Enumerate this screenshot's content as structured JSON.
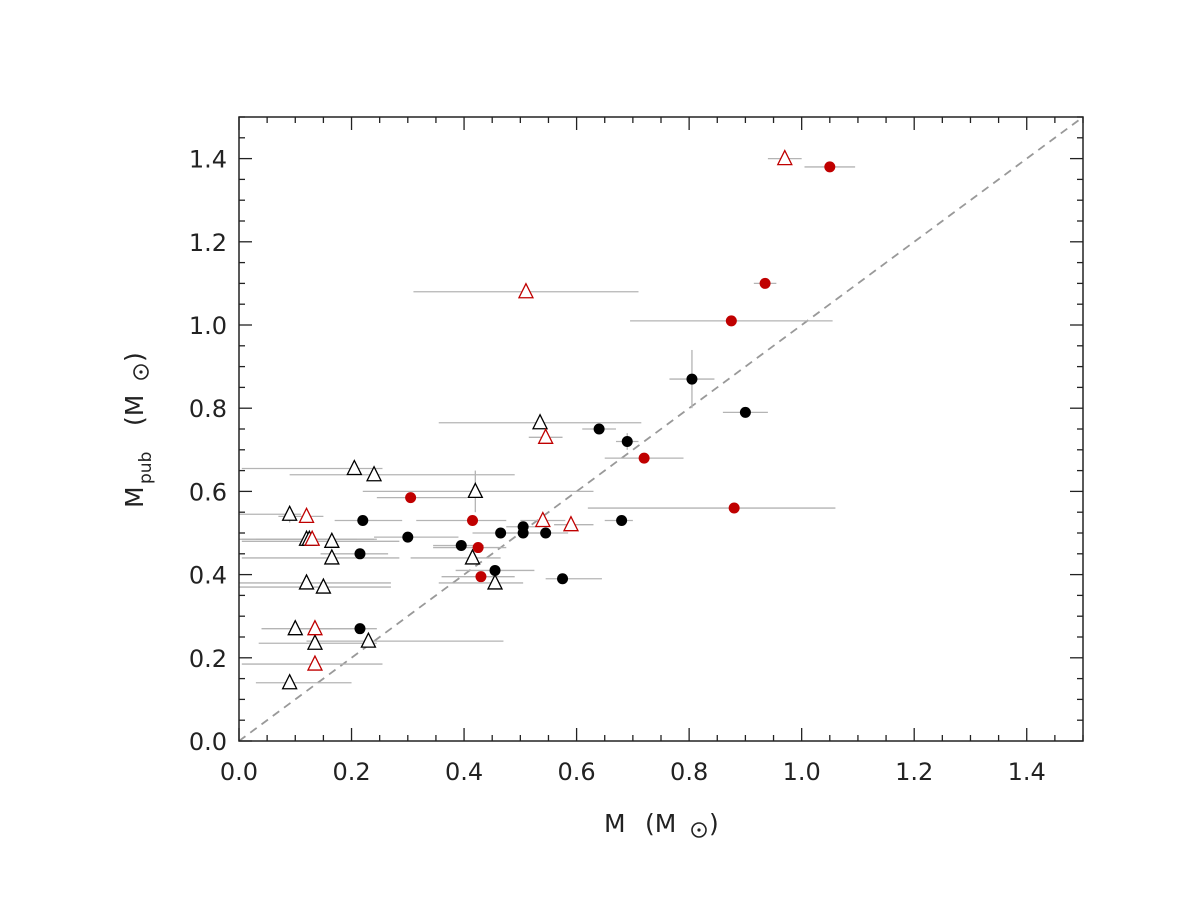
{
  "chart_data": {
    "type": "scatter",
    "title": "",
    "xlabel": {
      "main": "M",
      "unit_open": "(M",
      "unit_close": ")",
      "unit_symbol": "sun-symbol"
    },
    "ylabel": {
      "main": "M",
      "sub": "pub",
      "unit_open": "(M",
      "unit_close": ")",
      "unit_symbol": "sun-symbol"
    },
    "xlim": [
      0.0,
      1.5
    ],
    "ylim": [
      0.0,
      1.5
    ],
    "xticks": [
      "0.0",
      "0.2",
      "0.4",
      "0.6",
      "0.8",
      "1.0",
      "1.2",
      "1.4"
    ],
    "yticks": [
      "0.0",
      "0.2",
      "0.4",
      "0.6",
      "0.8",
      "1.0",
      "1.2",
      "1.4"
    ],
    "reference_line": {
      "type": "one-to-one",
      "style": "dashed",
      "color": "#999999",
      "x": [
        0.0,
        1.5
      ],
      "y": [
        0.0,
        1.5
      ]
    },
    "colors": {
      "black": "#000000",
      "red": "#c00000",
      "error_bar": "#b4b4b4"
    },
    "series": [
      {
        "name": "black-circles",
        "marker": "filled-circle",
        "color": "#000000",
        "points": [
          {
            "x": 0.215,
            "y": 0.27,
            "xerr": [
              0.09,
              0.03
            ],
            "yerr": 0
          },
          {
            "x": 0.215,
            "y": 0.45,
            "xerr": [
              0.07,
              0.05
            ],
            "yerr": 0
          },
          {
            "x": 0.22,
            "y": 0.53,
            "xerr": [
              0.05,
              0.07
            ],
            "yerr": 0
          },
          {
            "x": 0.3,
            "y": 0.49,
            "xerr": [
              0.06,
              0.09
            ],
            "yerr": 0
          },
          {
            "x": 0.395,
            "y": 0.47,
            "xerr": [
              0.05,
              0.04
            ],
            "yerr": 0
          },
          {
            "x": 0.455,
            "y": 0.41,
            "xerr": [
              0.07,
              0.07
            ],
            "yerr": 0
          },
          {
            "x": 0.465,
            "y": 0.5,
            "xerr": [
              0.05,
              0.04
            ],
            "yerr": 0
          },
          {
            "x": 0.505,
            "y": 0.5,
            "xerr": [
              0.03,
              0.03
            ],
            "yerr": 0
          },
          {
            "x": 0.505,
            "y": 0.515,
            "xerr": [
              0.03,
              0.03
            ],
            "yerr": 0
          },
          {
            "x": 0.545,
            "y": 0.5,
            "xerr": [
              0.03,
              0.04
            ],
            "yerr": 0
          },
          {
            "x": 0.575,
            "y": 0.39,
            "xerr": [
              0.03,
              0.07
            ],
            "yerr": 0
          },
          {
            "x": 0.64,
            "y": 0.75,
            "xerr": [
              0.03,
              0.03
            ],
            "yerr": 0
          },
          {
            "x": 0.68,
            "y": 0.53,
            "xerr": [
              0.03,
              0.02
            ],
            "yerr": 0
          },
          {
            "x": 0.69,
            "y": 0.72,
            "xerr": [
              0.02,
              0.02
            ],
            "yerr": 0.02
          },
          {
            "x": 0.805,
            "y": 0.87,
            "xerr": [
              0.04,
              0.04
            ],
            "yerr": 0.07
          },
          {
            "x": 0.9,
            "y": 0.79,
            "xerr": [
              0.04,
              0.04
            ],
            "yerr": 0
          }
        ]
      },
      {
        "name": "red-circles",
        "marker": "filled-circle",
        "color": "#c00000",
        "points": [
          {
            "x": 0.305,
            "y": 0.585,
            "xerr": [
              0.06,
              0.1
            ],
            "yerr": 0
          },
          {
            "x": 0.415,
            "y": 0.53,
            "xerr": [
              0.1,
              0.06
            ],
            "yerr": 0
          },
          {
            "x": 0.425,
            "y": 0.465,
            "xerr": [
              0.08,
              0.05
            ],
            "yerr": 0
          },
          {
            "x": 0.43,
            "y": 0.395,
            "xerr": [
              0.07,
              0.06
            ],
            "yerr": 0
          },
          {
            "x": 0.72,
            "y": 0.68,
            "xerr": [
              0.07,
              0.07
            ],
            "yerr": 0
          },
          {
            "x": 0.875,
            "y": 1.01,
            "xerr": [
              0.18,
              0.18
            ],
            "yerr": 0
          },
          {
            "x": 0.88,
            "y": 0.56,
            "xerr": [
              0.26,
              0.18
            ],
            "yerr": 0
          },
          {
            "x": 0.935,
            "y": 1.1,
            "xerr": [
              0.02,
              0.02
            ],
            "yerr": 0
          },
          {
            "x": 1.05,
            "y": 1.38,
            "xerr": [
              0.045,
              0.045
            ],
            "yerr": 0
          }
        ]
      },
      {
        "name": "black-triangles",
        "marker": "open-triangle",
        "color": "#000000",
        "points": [
          {
            "x": 0.09,
            "y": 0.545,
            "xerr": [
              0.09,
              0.02
            ],
            "yerr": 0.02
          },
          {
            "x": 0.09,
            "y": 0.14,
            "xerr": [
              0.06,
              0.11
            ],
            "yerr": 0
          },
          {
            "x": 0.1,
            "y": 0.27,
            "xerr": [
              0.06,
              0.1
            ],
            "yerr": 0
          },
          {
            "x": 0.12,
            "y": 0.485,
            "xerr": [
              0.12,
              0.12
            ],
            "yerr": 0
          },
          {
            "x": 0.125,
            "y": 0.485,
            "xerr": [
              0.12,
              0.12
            ],
            "yerr": 0
          },
          {
            "x": 0.12,
            "y": 0.38,
            "xerr": [
              0.12,
              0.15
            ],
            "yerr": 0
          },
          {
            "x": 0.135,
            "y": 0.235,
            "xerr": [
              0.1,
              0.11
            ],
            "yerr": 0
          },
          {
            "x": 0.15,
            "y": 0.37,
            "xerr": [
              0.15,
              0.12
            ],
            "yerr": 0
          },
          {
            "x": 0.165,
            "y": 0.48,
            "xerr": [
              0.16,
              0.12
            ],
            "yerr": 0
          },
          {
            "x": 0.165,
            "y": 0.44,
            "xerr": [
              0.16,
              0.12
            ],
            "yerr": 0
          },
          {
            "x": 0.205,
            "y": 0.655,
            "xerr": [
              0.2,
              0.05
            ],
            "yerr": 0
          },
          {
            "x": 0.23,
            "y": 0.24,
            "xerr": [
              0.11,
              0.24
            ],
            "yerr": 0
          },
          {
            "x": 0.24,
            "y": 0.64,
            "xerr": [
              0.15,
              0.25
            ],
            "yerr": 0
          },
          {
            "x": 0.415,
            "y": 0.44,
            "xerr": [
              0.11,
              0.05
            ],
            "yerr": 0
          },
          {
            "x": 0.42,
            "y": 0.6,
            "xerr": [
              0.2,
              0.21
            ],
            "yerr": 0.05
          },
          {
            "x": 0.455,
            "y": 0.38,
            "xerr": [
              0.1,
              0.05
            ],
            "yerr": 0
          },
          {
            "x": 0.535,
            "y": 0.765,
            "xerr": [
              0.18,
              0.18
            ],
            "yerr": 0
          }
        ]
      },
      {
        "name": "red-triangles",
        "marker": "open-triangle",
        "color": "#c00000",
        "points": [
          {
            "x": 0.12,
            "y": 0.54,
            "xerr": [
              0.05,
              0.03
            ],
            "yerr": 0
          },
          {
            "x": 0.13,
            "y": 0.485,
            "xerr": [
              0.1,
              0.08
            ],
            "yerr": 0
          },
          {
            "x": 0.135,
            "y": 0.27,
            "xerr": [
              0.03,
              0.03
            ],
            "yerr": 0
          },
          {
            "x": 0.135,
            "y": 0.185,
            "xerr": [
              0.13,
              0.12
            ],
            "yerr": 0
          },
          {
            "x": 0.51,
            "y": 1.08,
            "xerr": [
              0.2,
              0.2
            ],
            "yerr": 0
          },
          {
            "x": 0.54,
            "y": 0.53,
            "xerr": [
              0.04,
              0.04
            ],
            "yerr": 0
          },
          {
            "x": 0.545,
            "y": 0.73,
            "xerr": [
              0.03,
              0.03
            ],
            "yerr": 0
          },
          {
            "x": 0.59,
            "y": 0.52,
            "xerr": [
              0.03,
              0.04
            ],
            "yerr": 0
          },
          {
            "x": 0.97,
            "y": 1.4,
            "xerr": [
              0.03,
              0.03
            ],
            "yerr": 0
          }
        ]
      }
    ]
  }
}
